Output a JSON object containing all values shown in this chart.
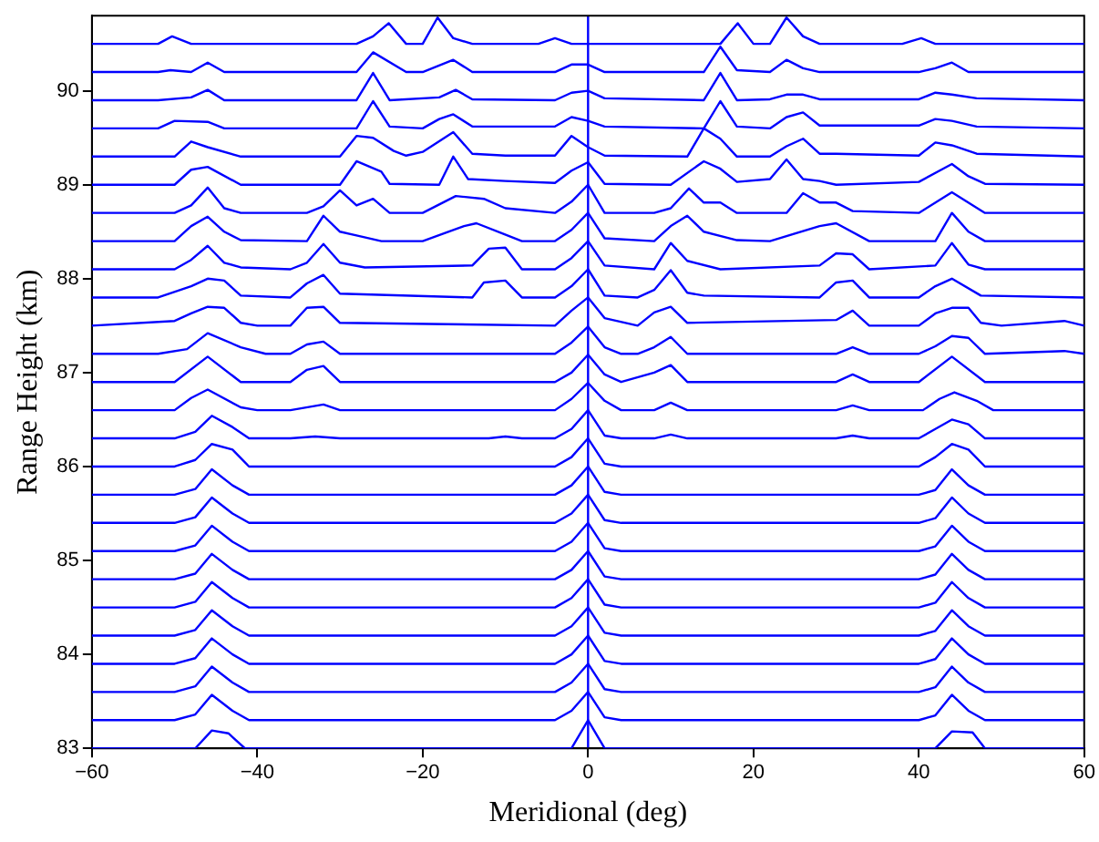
{
  "chart_data": {
    "type": "line",
    "xlabel": "Meridional (deg)",
    "ylabel": "Range Height (km)",
    "xlim": [
      -60,
      60
    ],
    "xticks": [
      -60,
      -40,
      -20,
      0,
      20,
      40,
      60
    ],
    "ylim": [
      83,
      90.8
    ],
    "yticks": [
      83,
      84,
      85,
      86,
      87,
      88,
      89,
      90
    ],
    "grid": false,
    "legend": false,
    "marker": "none",
    "line_style": "solid",
    "ref_lines": [
      {
        "axis": "x",
        "value": 0,
        "color": "#0000ff"
      }
    ],
    "series": [
      {
        "color": "#0000ff",
        "x": [
          -60,
          -47.5,
          -45.5,
          -43.5,
          -41.5,
          -2,
          0,
          2,
          42,
          44,
          46.5,
          48,
          60
        ],
        "values": [
          83,
          83,
          83.19,
          83.16,
          83,
          83,
          83.3,
          83,
          83,
          83.18,
          83.17,
          83,
          83
        ]
      },
      {
        "color": "#0000ff",
        "x": [
          -60,
          -50,
          -47.5,
          -45.5,
          -43,
          -41,
          -4,
          -2,
          0,
          2,
          4,
          40,
          42,
          44,
          46,
          48,
          60
        ],
        "values": [
          83.3,
          83.3,
          83.36,
          83.57,
          83.4,
          83.3,
          83.3,
          83.4,
          83.6,
          83.33,
          83.3,
          83.3,
          83.35,
          83.57,
          83.4,
          83.3,
          83.3
        ]
      },
      {
        "color": "#0000ff",
        "x": [
          -60,
          -50,
          -47.5,
          -45.5,
          -43,
          -41,
          -4,
          -2,
          0,
          2,
          4,
          40,
          42,
          44,
          46,
          48,
          60
        ],
        "values": [
          83.6,
          83.6,
          83.66,
          83.87,
          83.7,
          83.6,
          83.6,
          83.7,
          83.9,
          83.63,
          83.6,
          83.6,
          83.65,
          83.87,
          83.7,
          83.6,
          83.6
        ]
      },
      {
        "color": "#0000ff",
        "x": [
          -60,
          -50,
          -47.5,
          -45.5,
          -43,
          -41,
          -4,
          -2,
          0,
          2,
          4,
          40,
          42,
          44,
          46,
          48,
          60
        ],
        "values": [
          83.9,
          83.9,
          83.96,
          84.17,
          84.0,
          83.9,
          83.9,
          84.0,
          84.2,
          83.93,
          83.9,
          83.9,
          83.95,
          84.17,
          84.0,
          83.9,
          83.9
        ]
      },
      {
        "color": "#0000ff",
        "x": [
          -60,
          -50,
          -47.5,
          -45.5,
          -43,
          -41,
          -4,
          -2,
          0,
          2,
          4,
          40,
          42,
          44,
          46,
          48,
          60
        ],
        "values": [
          84.2,
          84.2,
          84.26,
          84.47,
          84.3,
          84.2,
          84.2,
          84.3,
          84.5,
          84.23,
          84.2,
          84.2,
          84.25,
          84.47,
          84.3,
          84.2,
          84.2
        ]
      },
      {
        "color": "#0000ff",
        "x": [
          -60,
          -50,
          -47.5,
          -45.5,
          -43,
          -41,
          -4,
          -2,
          0,
          2,
          4,
          40,
          42,
          44,
          46,
          48,
          60
        ],
        "values": [
          84.5,
          84.5,
          84.56,
          84.77,
          84.6,
          84.5,
          84.5,
          84.6,
          84.8,
          84.53,
          84.5,
          84.5,
          84.55,
          84.77,
          84.6,
          84.5,
          84.5
        ]
      },
      {
        "color": "#0000ff",
        "x": [
          -60,
          -50,
          -47.5,
          -45.5,
          -43,
          -41,
          -4,
          -2,
          0,
          2,
          4,
          40,
          42,
          44,
          46,
          48,
          60
        ],
        "values": [
          84.8,
          84.8,
          84.86,
          85.07,
          84.9,
          84.8,
          84.8,
          84.9,
          85.1,
          84.83,
          84.8,
          84.8,
          84.85,
          85.07,
          84.9,
          84.8,
          84.8
        ]
      },
      {
        "color": "#0000ff",
        "x": [
          -60,
          -50,
          -47.5,
          -45.5,
          -43,
          -41,
          -4,
          -2,
          0,
          2,
          4,
          40,
          42,
          44,
          46,
          48,
          60
        ],
        "values": [
          85.1,
          85.1,
          85.16,
          85.37,
          85.2,
          85.1,
          85.1,
          85.2,
          85.4,
          85.13,
          85.1,
          85.1,
          85.15,
          85.37,
          85.2,
          85.1,
          85.1
        ]
      },
      {
        "color": "#0000ff",
        "x": [
          -60,
          -50,
          -47.5,
          -45.5,
          -43,
          -41,
          -4,
          -2,
          0,
          2,
          4,
          40,
          42,
          44,
          46,
          48,
          60
        ],
        "values": [
          85.4,
          85.4,
          85.46,
          85.67,
          85.5,
          85.4,
          85.4,
          85.5,
          85.7,
          85.43,
          85.4,
          85.4,
          85.45,
          85.67,
          85.5,
          85.4,
          85.4
        ]
      },
      {
        "color": "#0000ff",
        "x": [
          -60,
          -50,
          -47.5,
          -45.5,
          -43,
          -41,
          -4,
          -2,
          0,
          2,
          4,
          40,
          42,
          44,
          46,
          48,
          60
        ],
        "values": [
          85.7,
          85.7,
          85.76,
          85.97,
          85.8,
          85.7,
          85.7,
          85.8,
          86.0,
          85.73,
          85.7,
          85.7,
          85.75,
          85.97,
          85.8,
          85.7,
          85.7
        ]
      },
      {
        "color": "#0000ff",
        "x": [
          -60,
          -50,
          -47.5,
          -45.5,
          -43,
          -41,
          -4,
          -2,
          0,
          2,
          4,
          40,
          42,
          44,
          46,
          48,
          60
        ],
        "values": [
          86,
          86,
          86.07,
          86.24,
          86.18,
          86,
          86,
          86.1,
          86.3,
          86.03,
          86,
          86,
          86.1,
          86.24,
          86.18,
          86,
          86
        ]
      },
      {
        "color": "#0000ff",
        "x": [
          -60,
          -50,
          -47.5,
          -45.5,
          -43,
          -41,
          -36,
          -33,
          -30,
          -12,
          -10,
          -8,
          -4,
          -2,
          0,
          2,
          4,
          8,
          10,
          12,
          30,
          32,
          34,
          40,
          42,
          44,
          46,
          48,
          60
        ],
        "values": [
          86.3,
          86.3,
          86.37,
          86.54,
          86.42,
          86.3,
          86.3,
          86.32,
          86.3,
          86.3,
          86.32,
          86.3,
          86.3,
          86.4,
          86.6,
          86.33,
          86.3,
          86.3,
          86.34,
          86.3,
          86.3,
          86.33,
          86.3,
          86.3,
          86.4,
          86.5,
          86.45,
          86.3,
          86.3
        ]
      },
      {
        "color": "#0000ff",
        "x": [
          -60,
          -50,
          -48,
          -46,
          -42,
          -40,
          -36,
          -32,
          -30,
          -4,
          -2,
          0,
          2,
          4,
          8,
          10,
          12,
          30,
          32,
          34,
          40.5,
          42.5,
          44.3,
          47,
          49,
          60
        ],
        "values": [
          86.6,
          86.6,
          86.73,
          86.82,
          86.63,
          86.6,
          86.6,
          86.66,
          86.6,
          86.6,
          86.72,
          86.89,
          86.7,
          86.6,
          86.6,
          86.68,
          86.6,
          86.6,
          86.65,
          86.6,
          86.6,
          86.72,
          86.79,
          86.7,
          86.6,
          86.6
        ]
      },
      {
        "color": "#0000ff",
        "x": [
          -60,
          -50,
          -46,
          -42,
          -36,
          -34,
          -32,
          -30,
          -4,
          -2,
          0,
          2,
          4,
          8,
          10,
          12,
          30,
          32,
          34,
          40,
          44,
          48,
          60
        ],
        "values": [
          86.9,
          86.9,
          87.17,
          86.9,
          86.9,
          87.03,
          87.07,
          86.9,
          86.9,
          87.0,
          87.19,
          86.98,
          86.9,
          87.0,
          87.08,
          86.9,
          86.9,
          86.98,
          86.9,
          86.9,
          87.17,
          86.9,
          86.9
        ]
      },
      {
        "color": "#0000ff",
        "x": [
          -60,
          -52,
          -48.5,
          -46,
          -42,
          -39,
          -36,
          -34,
          -32,
          -30,
          -4,
          -2,
          0,
          2,
          4,
          6,
          8,
          10,
          12,
          30,
          32,
          34,
          40,
          42,
          44,
          46,
          48,
          57.6,
          60
        ],
        "values": [
          87.2,
          87.2,
          87.25,
          87.42,
          87.27,
          87.2,
          87.2,
          87.3,
          87.33,
          87.2,
          87.2,
          87.32,
          87.49,
          87.27,
          87.2,
          87.2,
          87.27,
          87.38,
          87.2,
          87.2,
          87.27,
          87.2,
          87.2,
          87.28,
          87.39,
          87.37,
          87.2,
          87.23,
          87.2
        ]
      },
      {
        "color": "#0000ff",
        "x": [
          -60,
          -50,
          -48,
          -46,
          -44,
          -42,
          -40,
          -36,
          -34,
          -32,
          -30,
          -4,
          -2,
          0,
          2,
          6,
          8,
          10,
          12,
          30,
          32,
          34,
          40,
          42,
          44,
          46,
          47.5,
          50,
          57.6,
          60
        ],
        "values": [
          87.5,
          87.55,
          87.63,
          87.7,
          87.69,
          87.53,
          87.5,
          87.5,
          87.69,
          87.7,
          87.53,
          87.5,
          87.66,
          87.8,
          87.58,
          87.5,
          87.64,
          87.7,
          87.53,
          87.56,
          87.66,
          87.5,
          87.5,
          87.63,
          87.69,
          87.69,
          87.53,
          87.5,
          87.55,
          87.5
        ]
      },
      {
        "color": "#0000ff",
        "x": [
          -60,
          -52,
          -48,
          -46,
          -44,
          -42,
          -36,
          -34,
          -32,
          -30,
          -14,
          -12.6,
          -10,
          -8,
          -4,
          -2,
          0,
          2,
          6,
          8,
          10,
          12,
          14,
          28,
          30,
          32,
          34,
          40,
          42,
          44,
          47.5,
          60
        ],
        "values": [
          87.8,
          87.8,
          87.92,
          88.0,
          87.98,
          87.82,
          87.8,
          87.95,
          88.04,
          87.84,
          87.8,
          87.96,
          87.98,
          87.8,
          87.8,
          87.92,
          88.1,
          87.82,
          87.8,
          87.88,
          88.09,
          87.85,
          87.82,
          87.8,
          87.96,
          87.98,
          87.8,
          87.8,
          87.92,
          88.0,
          87.82,
          87.8
        ]
      },
      {
        "color": "#0000ff",
        "x": [
          -60,
          -50,
          -48,
          -46,
          -44,
          -42,
          -36,
          -34,
          -32,
          -30,
          -27,
          -14,
          -12,
          -10,
          -8,
          -4,
          -2,
          0,
          2,
          8,
          10,
          12,
          16,
          28,
          30,
          32,
          34,
          42,
          44,
          46,
          48,
          60
        ],
        "values": [
          88.1,
          88.1,
          88.2,
          88.35,
          88.17,
          88.12,
          88.1,
          88.17,
          88.37,
          88.17,
          88.12,
          88.14,
          88.32,
          88.33,
          88.1,
          88.1,
          88.22,
          88.4,
          88.14,
          88.1,
          88.38,
          88.19,
          88.1,
          88.14,
          88.27,
          88.26,
          88.1,
          88.14,
          88.38,
          88.15,
          88.1,
          88.1
        ]
      },
      {
        "color": "#0000ff",
        "x": [
          -60,
          -50,
          -48,
          -46,
          -44,
          -42,
          -34,
          -32,
          -30,
          -28,
          -25,
          -20,
          -15,
          -13.5,
          -8,
          -4,
          -2,
          0,
          2,
          8,
          10,
          12,
          14,
          18,
          22,
          28,
          30,
          34,
          42,
          44,
          46,
          48,
          60
        ],
        "values": [
          88.4,
          88.4,
          88.56,
          88.66,
          88.5,
          88.41,
          88.4,
          88.67,
          88.5,
          88.46,
          88.4,
          88.4,
          88.56,
          88.59,
          88.4,
          88.4,
          88.52,
          88.7,
          88.43,
          88.4,
          88.56,
          88.67,
          88.5,
          88.41,
          88.4,
          88.56,
          88.59,
          88.4,
          88.4,
          88.7,
          88.5,
          88.4,
          88.4
        ]
      },
      {
        "color": "#0000ff",
        "x": [
          -60,
          -50,
          -48,
          -46,
          -44,
          -42,
          -34,
          -32,
          -30,
          -28,
          -26,
          -24,
          -20,
          -16,
          -12.6,
          -10,
          -4,
          -2,
          0,
          2,
          4,
          8,
          10,
          12.2,
          14,
          16,
          18,
          24,
          26,
          28,
          30,
          32,
          40,
          44,
          48,
          60
        ],
        "values": [
          88.7,
          88.7,
          88.78,
          88.97,
          88.75,
          88.7,
          88.7,
          88.77,
          88.94,
          88.78,
          88.85,
          88.7,
          88.7,
          88.88,
          88.85,
          88.75,
          88.7,
          88.82,
          89.0,
          88.7,
          88.7,
          88.7,
          88.75,
          88.96,
          88.81,
          88.81,
          88.7,
          88.7,
          88.91,
          88.81,
          88.81,
          88.72,
          88.7,
          88.92,
          88.7,
          88.7
        ]
      },
      {
        "color": "#0000ff",
        "x": [
          -60,
          -50,
          -48,
          -46,
          -42,
          -30,
          -28,
          -25,
          -24,
          -18,
          -16.3,
          -14.5,
          -10,
          -4,
          -2,
          0,
          2,
          10,
          14,
          16,
          18,
          22,
          24,
          26,
          28,
          30,
          40,
          44,
          46,
          48,
          60
        ],
        "values": [
          89,
          89,
          89.16,
          89.19,
          89,
          89,
          89.25,
          89.14,
          89.01,
          89,
          89.3,
          89.06,
          89.04,
          89.02,
          89.15,
          89.24,
          89.01,
          89,
          89.25,
          89.17,
          89.03,
          89.06,
          89.27,
          89.06,
          89.04,
          89,
          89.03,
          89.22,
          89.09,
          89.01,
          89
        ]
      },
      {
        "color": "#0000ff",
        "x": [
          -60,
          -50,
          -48,
          -46,
          -42,
          -30,
          -28,
          -26,
          -23.5,
          -22,
          -20,
          -16.3,
          -14,
          -10,
          -4,
          -2,
          0,
          2,
          12,
          14,
          16,
          18,
          22,
          24,
          26,
          28,
          30,
          40,
          42,
          44,
          47,
          60
        ],
        "values": [
          89.3,
          89.3,
          89.46,
          89.4,
          89.3,
          89.3,
          89.52,
          89.5,
          89.36,
          89.31,
          89.35,
          89.56,
          89.33,
          89.31,
          89.31,
          89.52,
          89.4,
          89.31,
          89.3,
          89.6,
          89.49,
          89.3,
          89.3,
          89.41,
          89.49,
          89.33,
          89.33,
          89.31,
          89.45,
          89.42,
          89.33,
          89.3
        ]
      },
      {
        "color": "#0000ff",
        "x": [
          -60,
          -52,
          -50,
          -46,
          -44,
          -28,
          -26,
          -24,
          -20,
          -18,
          -16.3,
          -14,
          -4,
          -2,
          0,
          2,
          14,
          16,
          18,
          22,
          24,
          26,
          28,
          40,
          42,
          44,
          47,
          60
        ],
        "values": [
          89.6,
          89.6,
          89.68,
          89.67,
          89.6,
          89.6,
          89.89,
          89.62,
          89.6,
          89.7,
          89.75,
          89.62,
          89.62,
          89.72,
          89.68,
          89.62,
          89.6,
          89.89,
          89.62,
          89.6,
          89.72,
          89.77,
          89.63,
          89.63,
          89.7,
          89.68,
          89.62,
          89.6
        ]
      },
      {
        "color": "#0000ff",
        "x": [
          -60,
          -52,
          -48,
          -46,
          -44,
          -28,
          -26,
          -24,
          -18,
          -16,
          -14,
          -4,
          -2,
          0,
          2,
          14,
          16,
          18,
          22,
          24,
          26,
          28,
          40,
          42,
          44,
          47,
          60
        ],
        "values": [
          89.9,
          89.9,
          89.93,
          90.01,
          89.9,
          89.9,
          90.19,
          89.9,
          89.93,
          90.01,
          89.91,
          89.9,
          89.98,
          90.0,
          89.92,
          89.9,
          90.19,
          89.9,
          89.91,
          89.96,
          89.96,
          89.91,
          89.91,
          89.98,
          89.96,
          89.92,
          89.9
        ]
      },
      {
        "color": "#0000ff",
        "x": [
          -60,
          -52,
          -50.5,
          -48,
          -46,
          -44,
          -28,
          -26,
          -22,
          -20,
          -16.3,
          -14,
          -4,
          -2,
          0,
          2,
          14,
          16,
          18,
          22,
          24,
          26,
          28,
          40,
          42,
          44,
          46,
          60
        ],
        "values": [
          90.2,
          90.2,
          90.22,
          90.2,
          90.3,
          90.2,
          90.2,
          90.41,
          90.2,
          90.2,
          90.33,
          90.2,
          90.2,
          90.28,
          90.28,
          90.2,
          90.2,
          90.47,
          90.22,
          90.2,
          90.33,
          90.24,
          90.2,
          90.2,
          90.24,
          90.3,
          90.2,
          90.2
        ]
      },
      {
        "color": "#0000ff",
        "x": [
          -60,
          -52,
          -50.3,
          -48,
          -28,
          -26,
          -24.1,
          -22,
          -20,
          -18.2,
          -16.3,
          -14,
          -6,
          -4,
          -2,
          16,
          18.1,
          20,
          22,
          24,
          26,
          28,
          38,
          40.3,
          42,
          60
        ],
        "values": [
          90.5,
          90.5,
          90.58,
          90.5,
          90.5,
          90.58,
          90.72,
          90.5,
          90.5,
          90.78,
          90.56,
          90.5,
          90.5,
          90.56,
          90.5,
          90.5,
          90.72,
          90.5,
          90.5,
          90.78,
          90.58,
          90.5,
          90.5,
          90.56,
          90.5,
          90.5
        ]
      }
    ]
  }
}
